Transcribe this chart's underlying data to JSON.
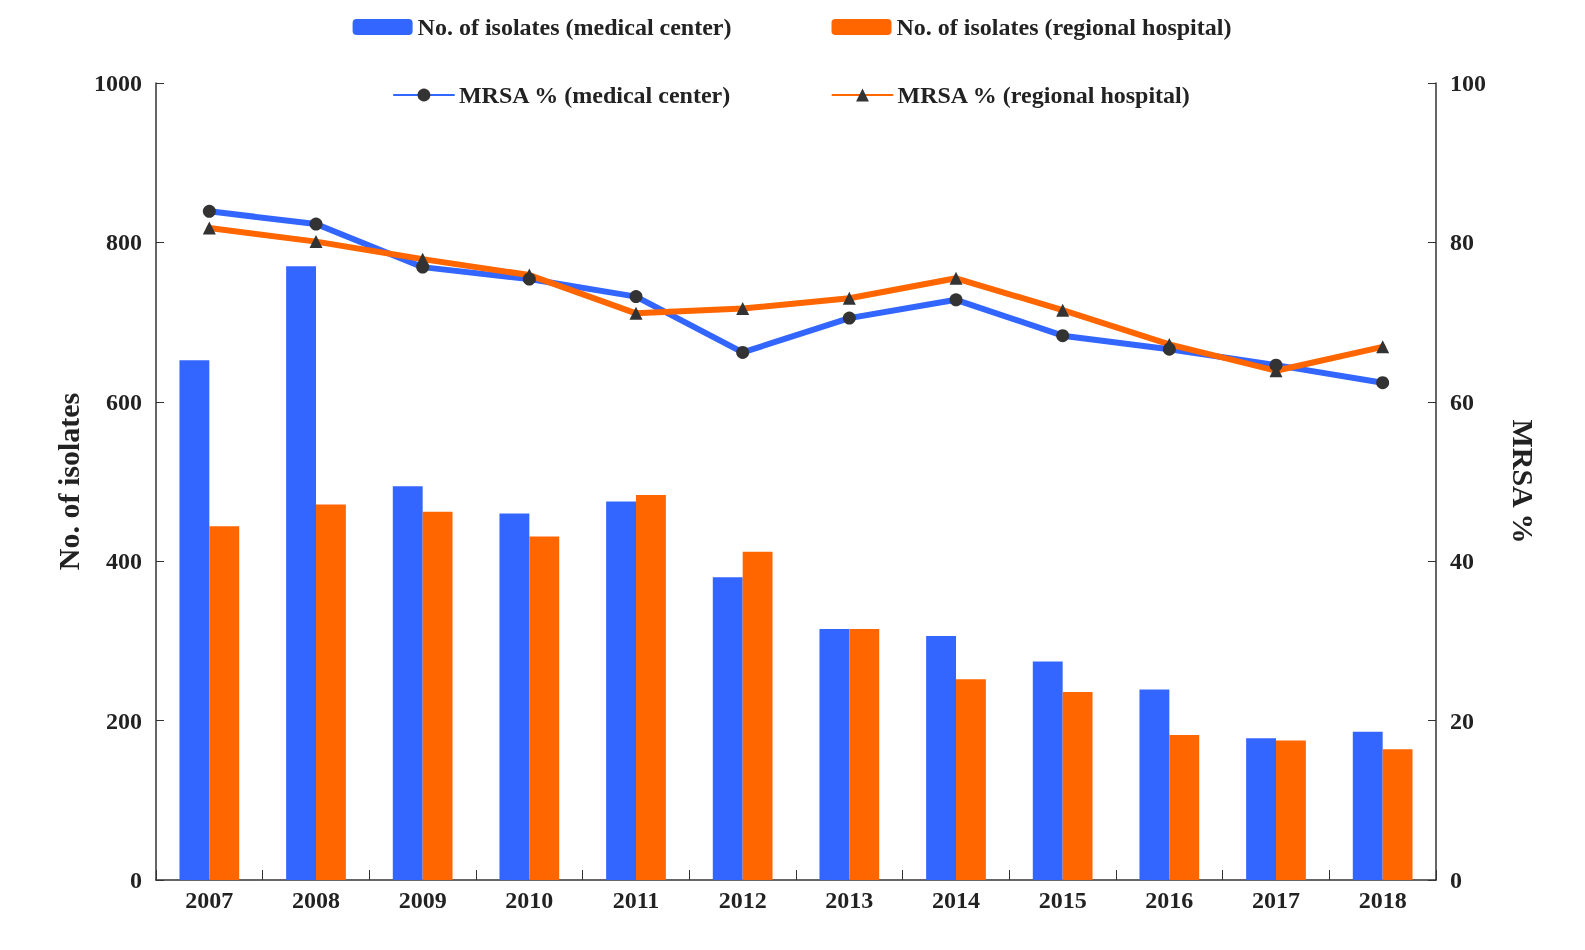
{
  "chart_data": {
    "type": "bar",
    "categories": [
      "2007",
      "2008",
      "2009",
      "2010",
      "2011",
      "2012",
      "2013",
      "2014",
      "2015",
      "2016",
      "2017",
      "2018"
    ],
    "ylabel": "No. of isolates",
    "y2label": "MRSA %",
    "ylim": [
      0,
      1000
    ],
    "yticks": [
      0,
      200,
      400,
      600,
      800,
      1000
    ],
    "y2lim": [
      0,
      100
    ],
    "y2ticks": [
      0,
      20,
      40,
      60,
      80,
      100
    ],
    "grid": false,
    "legend": "top",
    "series": [
      {
        "name": "No. of isolates (medical center)",
        "color": "#3366ff",
        "values": [
          652,
          770,
          494,
          460,
          475,
          380,
          315,
          306,
          274,
          239,
          178,
          186
        ]
      },
      {
        "name": "No. of isolates (regional hospital)",
        "color": "#ff6600",
        "values": [
          444,
          471,
          462,
          431,
          483,
          412,
          315,
          252,
          236,
          182,
          175,
          164
        ]
      },
      {
        "name": "MRSA % (medical center)",
        "type": "line",
        "axis": "y2",
        "color": "#3366ff",
        "marker": "circle",
        "line_style": "solid",
        "values": [
          83.9,
          82.3,
          76.9,
          75.4,
          73.2,
          66.2,
          70.5,
          72.8,
          68.3,
          66.6,
          64.6,
          62.4
        ]
      },
      {
        "name": "MRSA % (regional hospital)",
        "type": "line",
        "axis": "y2",
        "color": "#ff6600",
        "marker": "triangle",
        "line_style": "solid",
        "values": [
          81.8,
          80.1,
          77.9,
          75.9,
          71.1,
          71.7,
          73.0,
          75.5,
          71.5,
          67.2,
          63.9,
          66.9
        ]
      }
    ]
  }
}
